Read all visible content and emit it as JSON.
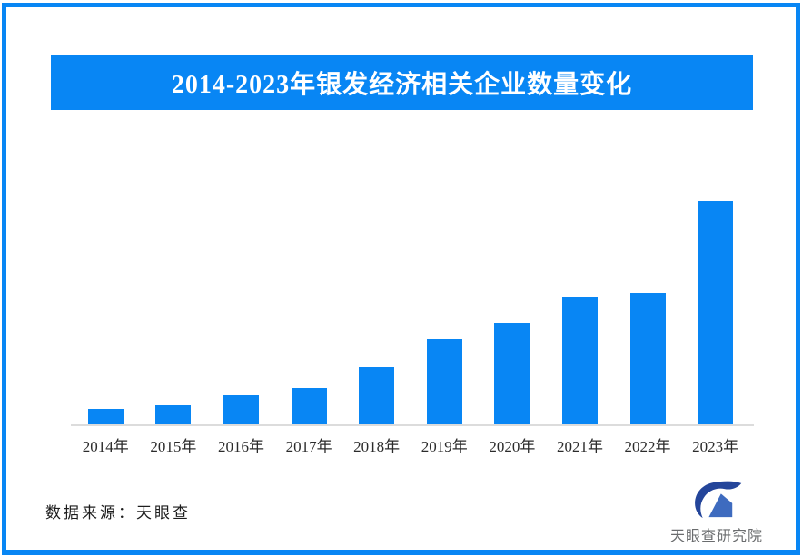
{
  "page": {
    "frame_color": "#0886f4",
    "background_color": "#ffffff"
  },
  "header": {
    "title": "2014-2023年银发经济相关企业数量变化",
    "banner_color": "#0886f4",
    "title_color": "#ffffff"
  },
  "chart_data": {
    "type": "bar",
    "title": "2014-2023年银发经济相关企业数量变化",
    "categories": [
      "2014年",
      "2015年",
      "2016年",
      "2017年",
      "2018年",
      "2019年",
      "2020年",
      "2021年",
      "2022年",
      "2023年"
    ],
    "values": [
      17,
      21,
      32,
      40,
      63,
      94,
      111,
      140,
      145,
      246
    ],
    "values_unit": "relative height (y-axis unlabeled in source image)",
    "xlabel": "",
    "ylabel": "",
    "ylim": [
      0,
      250
    ],
    "grid": false,
    "legend": false,
    "bar_color": "#0886f4",
    "axis_line_color": "#dcdcdc",
    "tick_label_color": "#2b2b2b"
  },
  "footer": {
    "source_label": "数据来源：天眼查",
    "brand_name": "天眼查研究院",
    "brand_text_color": "#6a6c6e",
    "logo_swoosh_color": "#24459a",
    "logo_house_color": "#3e6bbf"
  }
}
